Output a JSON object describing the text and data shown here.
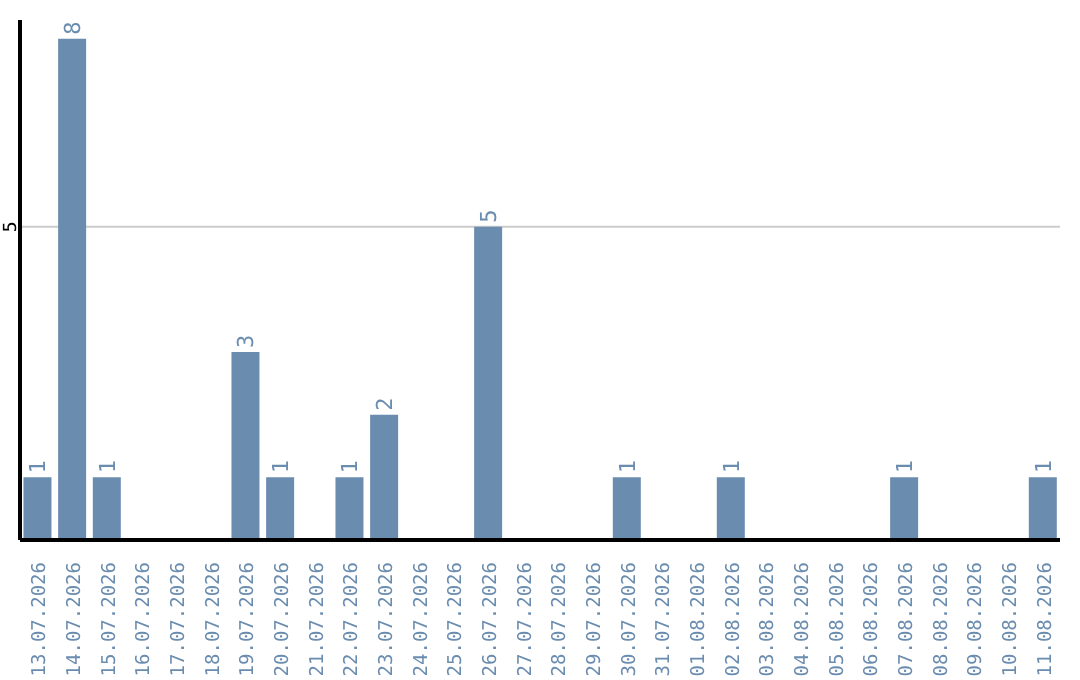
{
  "chart_data": {
    "type": "bar",
    "categories": [
      "13.07.2026",
      "14.07.2026",
      "15.07.2026",
      "16.07.2026",
      "17.07.2026",
      "18.07.2026",
      "19.07.2026",
      "20.07.2026",
      "21.07.2026",
      "22.07.2026",
      "23.07.2026",
      "24.07.2026",
      "25.07.2026",
      "26.07.2026",
      "27.07.2026",
      "28.07.2026",
      "29.07.2026",
      "30.07.2026",
      "31.07.2026",
      "01.08.2026",
      "02.08.2026",
      "03.08.2026",
      "04.08.2026",
      "05.08.2026",
      "06.08.2026",
      "07.08.2026",
      "08.08.2026",
      "09.08.2026",
      "10.08.2026",
      "11.08.2026"
    ],
    "values": [
      1,
      8,
      1,
      0,
      0,
      0,
      3,
      1,
      0,
      1,
      2,
      0,
      0,
      5,
      0,
      0,
      0,
      1,
      0,
      0,
      1,
      0,
      0,
      0,
      0,
      1,
      0,
      0,
      0,
      1
    ],
    "value_labels": [
      "1",
      "8",
      "1",
      null,
      null,
      null,
      "3",
      "1",
      null,
      "1",
      "2",
      null,
      null,
      "5",
      null,
      null,
      null,
      "1",
      null,
      null,
      "1",
      null,
      null,
      null,
      null,
      "1",
      null,
      null,
      null,
      "1"
    ],
    "color": "#6a8caf",
    "ylim": [
      0,
      8.3
    ],
    "yticks": [
      5
    ],
    "grid": "y"
  }
}
